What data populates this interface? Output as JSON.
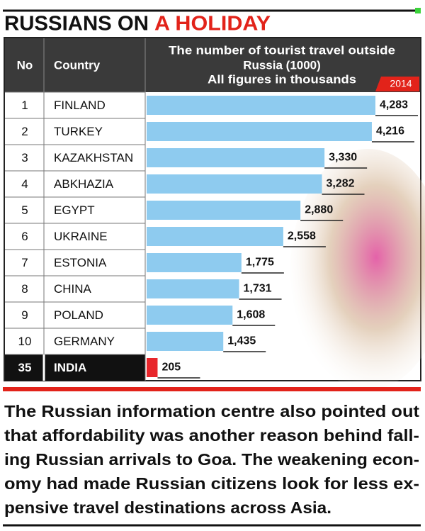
{
  "chart_data": {
    "type": "bar",
    "title": "RUSSIANS ON",
    "title_highlight": "A HOLIDAY",
    "column_headers": [
      "No",
      "Country"
    ],
    "value_header": [
      "The number of tourist travel outside",
      "Russia (1000)",
      "All figures in thousands"
    ],
    "year": "2014",
    "ranks": [
      1,
      2,
      3,
      4,
      5,
      6,
      7,
      8,
      9,
      10,
      35
    ],
    "categories": [
      "FINLAND",
      "TURKEY",
      "KAZAKHSTAN",
      "ABKHAZIA",
      "EGYPT",
      "UKRAINE",
      "ESTONIA",
      "CHINA",
      "POLAND",
      "GERMANY",
      "INDIA"
    ],
    "values": [
      4283,
      4216,
      3330,
      3282,
      2880,
      2558,
      1775,
      1731,
      1608,
      1435,
      205
    ],
    "value_labels": [
      "4,283",
      "4,216",
      "3,330",
      "3,282",
      "2,880",
      "2,558",
      "1,775",
      "1,731",
      "1,608",
      "1,435",
      "205"
    ],
    "colors": [
      "#8ecbef",
      "#8ecbef",
      "#8ecbef",
      "#8ecbef",
      "#8ecbef",
      "#8ecbef",
      "#8ecbef",
      "#8ecbef",
      "#8ecbef",
      "#8ecbef",
      "#e8262b"
    ],
    "highlight_rows": [
      10
    ]
  },
  "article": {
    "lines": [
      "The Russian information centre also pointed out",
      "that affordability was another reason behind fall-",
      "ing Russian arrivals to Goa. The weakening econ-",
      "omy had made Russian citizens look for less ex-",
      "pensive travel destinations across Asia."
    ]
  }
}
